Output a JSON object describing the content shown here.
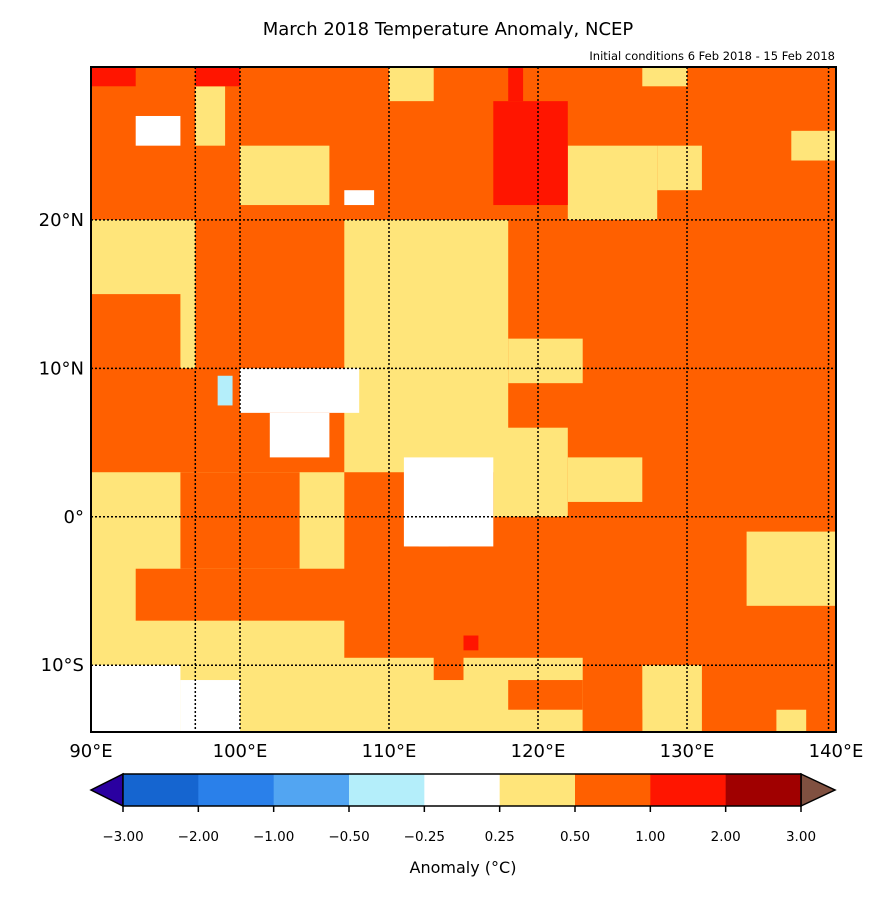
{
  "chart_data": {
    "type": "heatmap",
    "title": "March 2018 Temperature Anomaly, NCEP",
    "subtitle": "Initial conditions 6 Feb 2018 - 15 Feb 2018",
    "lon_range": [
      90,
      140
    ],
    "lat_range": [
      -14.5,
      30.3
    ],
    "x_ticks": [
      {
        "value": 90,
        "label": "90°E"
      },
      {
        "value": 100,
        "label": "100°E"
      },
      {
        "value": 110,
        "label": "110°E"
      },
      {
        "value": 120,
        "label": "120°E"
      },
      {
        "value": 130,
        "label": "130°E"
      },
      {
        "value": 140,
        "label": "140°E"
      }
    ],
    "y_ticks": [
      {
        "value": 20,
        "label": "20°N"
      },
      {
        "value": 10,
        "label": "10°N"
      },
      {
        "value": 0,
        "label": "0°"
      },
      {
        "value": -10,
        "label": "10°S"
      }
    ],
    "grid": true,
    "background_category": 6,
    "regions_note_units": "lon0, lat0, lon1, lat1, category index",
    "regions": [
      [
        90,
        -14.5,
        107,
        3,
        5
      ],
      [
        93,
        -7,
        112,
        -3.5,
        6
      ],
      [
        96,
        -3.5,
        104,
        3,
        6
      ],
      [
        90,
        -14.5,
        96,
        -10,
        4
      ],
      [
        96,
        -14.5,
        100,
        -11,
        4
      ],
      [
        105,
        -14.5,
        123,
        -9.5,
        5
      ],
      [
        113,
        -11,
        115,
        -8,
        6
      ],
      [
        115,
        -9,
        116,
        -8,
        7
      ],
      [
        118,
        -13,
        123,
        -11,
        6
      ],
      [
        127,
        -14.5,
        131,
        -10,
        5
      ],
      [
        123,
        -14.5,
        127,
        -13,
        6
      ],
      [
        134,
        -6,
        140,
        -1,
        5
      ],
      [
        136,
        -14.5,
        138,
        -13,
        5
      ],
      [
        107,
        3,
        118,
        20,
        5
      ],
      [
        118,
        9,
        123,
        12,
        5
      ],
      [
        117,
        0,
        122,
        6,
        5
      ],
      [
        122,
        1,
        127,
        4,
        5
      ],
      [
        100,
        7,
        108,
        10,
        4
      ],
      [
        102,
        4,
        106,
        7,
        4
      ],
      [
        111,
        -2,
        117,
        4,
        4
      ],
      [
        112,
        -2,
        114,
        -1,
        4
      ],
      [
        98.5,
        7.5,
        99.5,
        9.5,
        3
      ],
      [
        122,
        20,
        128,
        25,
        5
      ],
      [
        128,
        22,
        131,
        25,
        5
      ],
      [
        137,
        24,
        140,
        26,
        5
      ],
      [
        127,
        29,
        130,
        30.3,
        5
      ],
      [
        117,
        21,
        122,
        28,
        7
      ],
      [
        118,
        28,
        119,
        30.3,
        7
      ],
      [
        90,
        10,
        97,
        20,
        5
      ],
      [
        90,
        5,
        96,
        15,
        6
      ],
      [
        97,
        25,
        99,
        29,
        5
      ],
      [
        93,
        25,
        96,
        27,
        4
      ],
      [
        100,
        21,
        106,
        25,
        5
      ],
      [
        107,
        21,
        109,
        22,
        4
      ],
      [
        90,
        29,
        93,
        30.3,
        7
      ],
      [
        97,
        29,
        100,
        30.3,
        7
      ],
      [
        110,
        28,
        113,
        30.3,
        5
      ]
    ],
    "colorbar": {
      "label": "Anomaly (°C)",
      "under_color": "#2a00a0",
      "over_color": "#805040",
      "colors": [
        "#1565d0",
        "#2a80ea",
        "#52a5f2",
        "#b4eefa",
        "#ffffff",
        "#ffe57a",
        "#ff6000",
        "#ff1500",
        "#a00000"
      ],
      "ticks": [
        "−3.00",
        "−2.00",
        "−1.00",
        "−0.50",
        "−0.25",
        "0.25",
        "0.50",
        "1.00",
        "2.00",
        "3.00"
      ]
    }
  }
}
